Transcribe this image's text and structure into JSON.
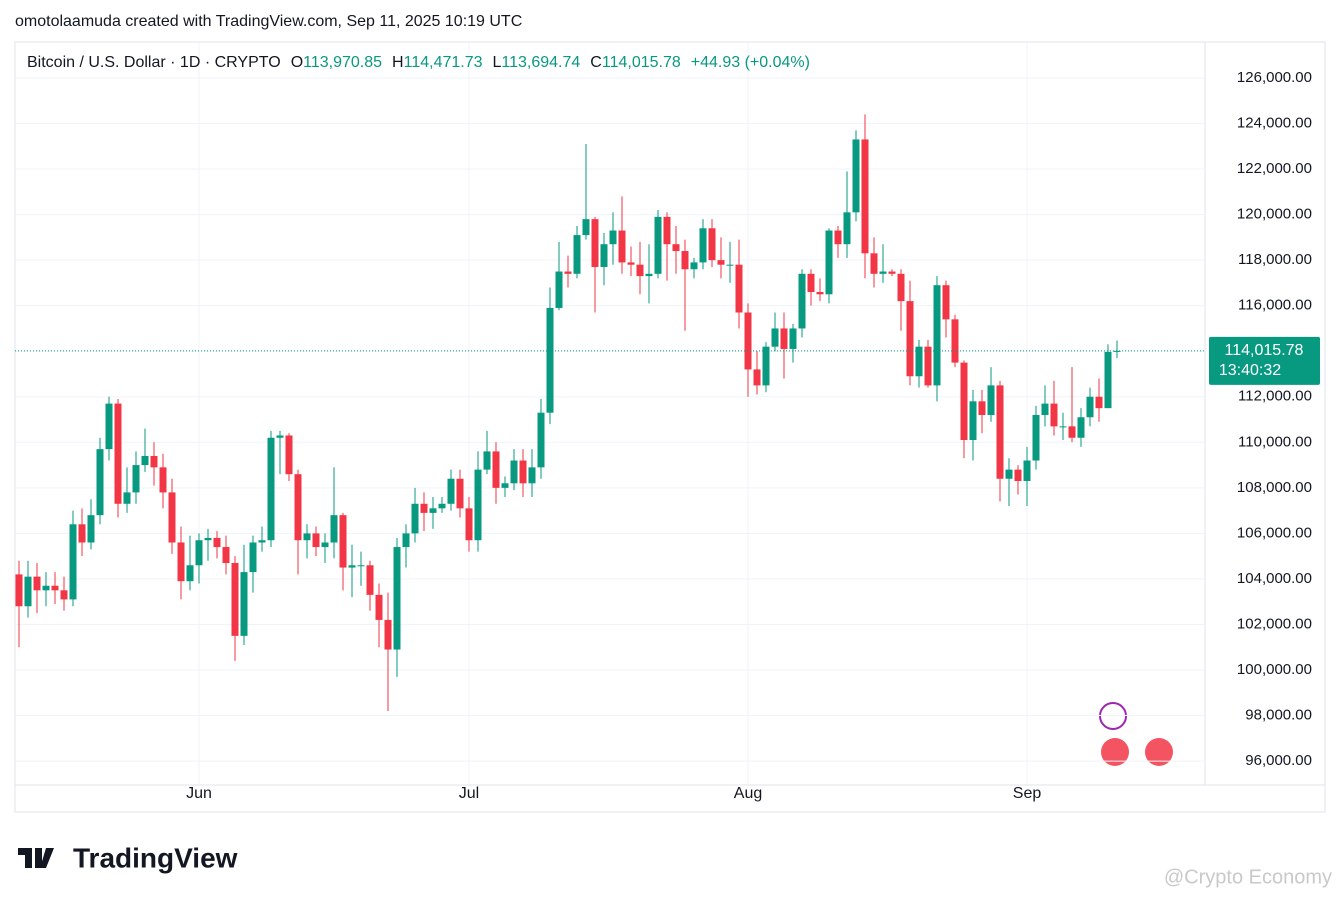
{
  "credit": "omotolaamuda created with TradingView.com, Sep 11, 2025 10:19 UTC",
  "legend": {
    "symbol": "Bitcoin / U.S. Dollar · 1D · CRYPTO",
    "ohlc": [
      {
        "label": "O",
        "value": "113,970.85"
      },
      {
        "label": "H",
        "value": "114,471.73"
      },
      {
        "label": "L",
        "value": "113,694.74"
      },
      {
        "label": "C",
        "value": "114,015.78"
      }
    ],
    "change": "+44.93 (+0.04%)"
  },
  "price_label": {
    "price": "114,015.78",
    "countdown": "13:40:32"
  },
  "logo": "TradingView",
  "watermark": "@Crypto Economy",
  "chart_data": {
    "type": "candlestick",
    "up_color": "#089981",
    "down_color": "#f23645",
    "grid": true,
    "ylim": [
      94950,
      127580
    ],
    "yticks": [
      {
        "value": 96000,
        "label": "96,000.00"
      },
      {
        "value": 98000,
        "label": "98,000.00"
      },
      {
        "value": 100000,
        "label": "100,000.00"
      },
      {
        "value": 102000,
        "label": "102,000.00"
      },
      {
        "value": 104000,
        "label": "104,000.00"
      },
      {
        "value": 106000,
        "label": "106,000.00"
      },
      {
        "value": 108000,
        "label": "108,000.00"
      },
      {
        "value": 110000,
        "label": "110,000.00"
      },
      {
        "value": 112000,
        "label": "112,000.00"
      },
      {
        "value": 114000,
        "label": "114,000.00"
      },
      {
        "value": 116000,
        "label": "116,000.00"
      },
      {
        "value": 118000,
        "label": "118,000.00"
      },
      {
        "value": 120000,
        "label": "120,000.00"
      },
      {
        "value": 122000,
        "label": "122,000.00"
      },
      {
        "value": 124000,
        "label": "124,000.00"
      },
      {
        "value": 126000,
        "label": "126,000.00"
      }
    ],
    "categories": [
      null,
      null,
      null,
      null,
      null,
      null,
      null,
      null,
      null,
      null,
      null,
      null,
      null,
      null,
      null,
      null,
      null,
      null,
      null,
      null,
      "Jun",
      null,
      null,
      null,
      null,
      null,
      null,
      null,
      null,
      null,
      null,
      null,
      null,
      null,
      null,
      null,
      null,
      null,
      null,
      null,
      null,
      null,
      null,
      null,
      null,
      null,
      null,
      null,
      null,
      null,
      "Jul",
      null,
      null,
      null,
      null,
      null,
      null,
      null,
      null,
      null,
      null,
      null,
      null,
      null,
      null,
      null,
      null,
      null,
      null,
      null,
      null,
      null,
      null,
      null,
      null,
      null,
      null,
      null,
      null,
      null,
      null,
      "Aug",
      null,
      null,
      null,
      null,
      null,
      null,
      null,
      null,
      null,
      null,
      null,
      null,
      null,
      null,
      null,
      null,
      null,
      null,
      null,
      null,
      null,
      null,
      null,
      null,
      null,
      null,
      null,
      null,
      null,
      null,
      "Sep",
      null,
      null,
      null,
      null,
      null,
      null,
      null,
      null,
      null,
      null
    ],
    "open": [
      104200,
      102800,
      104100,
      103500,
      103700,
      103500,
      103100,
      106400,
      105600,
      106800,
      109700,
      111700,
      107300,
      107800,
      109000,
      109400,
      108900,
      107800,
      105600,
      103900,
      104600,
      105700,
      105800,
      105400,
      104700,
      101500,
      104300,
      105600,
      105700,
      110200,
      110300,
      108600,
      105700,
      106000,
      105400,
      105600,
      106800,
      104500,
      104600,
      104600,
      103300,
      102200,
      100900,
      105400,
      106000,
      107300,
      106900,
      107100,
      107300,
      108400,
      107100,
      105700,
      108800,
      109600,
      108000,
      108200,
      109200,
      108200,
      108900,
      111300,
      115900,
      117500,
      117400,
      119100,
      119800,
      117700,
      118700,
      119300,
      117900,
      117800,
      117300,
      117400,
      119900,
      118700,
      118400,
      117600,
      117900,
      119400,
      118000,
      117800,
      117800,
      115700,
      113200,
      112500,
      114200,
      115000,
      114100,
      115000,
      117400,
      116600,
      116500,
      119300,
      118700,
      120100,
      123300,
      118300,
      117400,
      117500,
      117400,
      116200,
      112900,
      114200,
      112500,
      116900,
      115400,
      113500,
      110100,
      111800,
      111200,
      112500,
      108400,
      108800,
      108300,
      109200,
      111200,
      111700,
      110700,
      110700,
      110200,
      111100,
      112000,
      111500,
      113970.85
    ],
    "high": [
      104800,
      104800,
      104700,
      104300,
      104300,
      104100,
      107000,
      107100,
      107500,
      110200,
      112000,
      111900,
      108900,
      109600,
      110600,
      110000,
      109500,
      108400,
      106300,
      105900,
      106000,
      106200,
      106100,
      105900,
      105000,
      105500,
      105900,
      106300,
      110500,
      110500,
      110400,
      108800,
      106400,
      106300,
      106000,
      108900,
      106900,
      105500,
      105200,
      104800,
      103800,
      103400,
      105800,
      106400,
      108000,
      107800,
      107600,
      107600,
      108800,
      108800,
      107600,
      109600,
      110500,
      110000,
      108500,
      109700,
      109700,
      109700,
      111900,
      116800,
      118800,
      118200,
      119500,
      123100,
      119900,
      119200,
      120100,
      120800,
      118600,
      118800,
      118700,
      120200,
      120100,
      119500,
      118900,
      118100,
      119800,
      119800,
      119000,
      118800,
      118900,
      116100,
      114000,
      114400,
      115700,
      115700,
      115200,
      117600,
      117600,
      117200,
      119400,
      119500,
      121900,
      123700,
      124400,
      119000,
      118700,
      117600,
      117600,
      117100,
      114500,
      114500,
      117300,
      117100,
      115600,
      113600,
      112300,
      112300,
      113300,
      112700,
      109300,
      109000,
      109800,
      111600,
      112500,
      112700,
      111300,
      113300,
      111500,
      112400,
      112800,
      114300,
      114471.73
    ],
    "low": [
      101000,
      102300,
      102500,
      102800,
      102900,
      102600,
      102800,
      105000,
      105300,
      106400,
      109200,
      106700,
      106900,
      107300,
      108700,
      108100,
      107100,
      105100,
      103100,
      103500,
      103800,
      104800,
      104900,
      104200,
      100400,
      101100,
      103400,
      105200,
      105400,
      108600,
      108300,
      104200,
      104900,
      105000,
      104700,
      104900,
      103500,
      103200,
      103700,
      102600,
      101000,
      98200,
      99700,
      104500,
      105600,
      106100,
      106200,
      106900,
      107000,
      106700,
      105200,
      105200,
      108600,
      107300,
      107600,
      107900,
      107600,
      107600,
      108400,
      110800,
      115800,
      116800,
      117200,
      118900,
      115700,
      116900,
      117800,
      117400,
      117300,
      116500,
      116100,
      117200,
      117100,
      117400,
      114900,
      117200,
      117600,
      117700,
      117200,
      117000,
      115000,
      112000,
      112100,
      112200,
      114000,
      112800,
      113500,
      114600,
      116000,
      116200,
      116100,
      118100,
      118100,
      119700,
      117200,
      116800,
      117000,
      117300,
      114900,
      112500,
      112400,
      112400,
      111800,
      114600,
      113300,
      109300,
      109200,
      110400,
      110900,
      107400,
      107200,
      107700,
      107200,
      108800,
      110700,
      110300,
      110100,
      110000,
      109800,
      110700,
      110900,
      111500,
      113694.74
    ],
    "close": [
      102800,
      104100,
      103500,
      103700,
      103500,
      103100,
      106400,
      105600,
      106800,
      109700,
      111700,
      107300,
      107800,
      109000,
      109400,
      108900,
      107800,
      105600,
      103900,
      104600,
      105700,
      105800,
      105400,
      104700,
      101500,
      104300,
      105600,
      105700,
      110200,
      110300,
      108600,
      105700,
      106000,
      105400,
      105600,
      106800,
      104500,
      104600,
      104600,
      103300,
      102200,
      100900,
      105400,
      106000,
      107300,
      106900,
      107100,
      107300,
      108400,
      107100,
      105700,
      108800,
      109600,
      108000,
      108200,
      109200,
      108200,
      108900,
      111300,
      115900,
      117500,
      117400,
      119100,
      119800,
      117700,
      118700,
      119300,
      117900,
      117800,
      117300,
      117400,
      119900,
      118700,
      118400,
      117600,
      117900,
      119400,
      118000,
      117800,
      117800,
      115700,
      113200,
      112500,
      114200,
      115000,
      114100,
      115000,
      117400,
      116600,
      116500,
      119300,
      118700,
      120100,
      123300,
      118300,
      117400,
      117500,
      117400,
      116200,
      112900,
      114200,
      112500,
      116900,
      115400,
      113500,
      110100,
      111800,
      111200,
      112500,
      108400,
      108800,
      108300,
      109200,
      111200,
      111700,
      110700,
      110700,
      110200,
      111100,
      112000,
      111500,
      113970,
      114015.78
    ]
  }
}
